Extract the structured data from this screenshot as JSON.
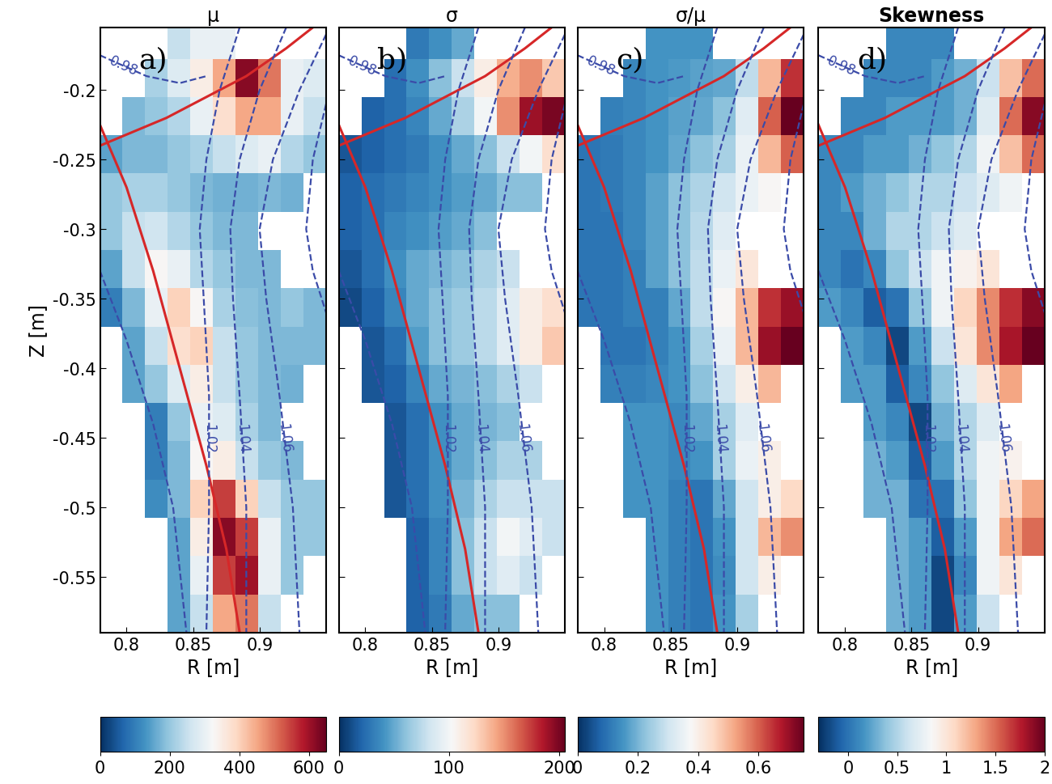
{
  "chart_data": {
    "type": "heatmap",
    "xlabel": "R [m]",
    "ylabel": "Z [m]",
    "xlim": [
      0.78,
      0.95
    ],
    "ylim": [
      -0.59,
      -0.155
    ],
    "xticks": [
      0.8,
      0.85,
      0.9
    ],
    "yticks": [
      -0.2,
      -0.25,
      -0.3,
      -0.35,
      -0.4,
      -0.45,
      -0.5,
      -0.55
    ],
    "R_edges": [
      0.78,
      0.797,
      0.814,
      0.831,
      0.848,
      0.865,
      0.882,
      0.899,
      0.916,
      0.933,
      0.95
    ],
    "Z_edges": [
      -0.59,
      -0.5625,
      -0.535,
      -0.5075,
      -0.48,
      -0.4525,
      -0.425,
      -0.3975,
      -0.37,
      -0.3425,
      -0.315,
      -0.2875,
      -0.26,
      -0.2325,
      -0.205,
      -0.1775,
      -0.15
    ],
    "lines": [
      {
        "color": "#d62728",
        "line_style": "solid",
        "R": [
          0.78,
          0.8,
          0.82,
          0.84,
          0.86,
          0.875,
          0.885
        ],
        "Z": [
          -0.225,
          -0.27,
          -0.33,
          -0.4,
          -0.47,
          -0.53,
          -0.59
        ]
      },
      {
        "color": "#d62728",
        "line_style": "solid",
        "R": [
          0.78,
          0.8,
          0.83,
          0.86,
          0.89,
          0.92,
          0.94
        ],
        "Z": [
          -0.24,
          -0.232,
          -0.22,
          -0.205,
          -0.19,
          -0.17,
          -0.155
        ]
      },
      {
        "color": "#3b4ba8",
        "line_style": "dashed",
        "label": "0.98",
        "R": [
          0.78,
          0.815,
          0.84,
          0.86
        ],
        "Z": [
          -0.175,
          -0.19,
          -0.195,
          -0.19
        ]
      },
      {
        "color": "#3b4ba8",
        "line_style": "dashed",
        "R": [
          0.78,
          0.8,
          0.82,
          0.835,
          0.845
        ],
        "Z": [
          -0.33,
          -0.38,
          -0.44,
          -0.5,
          -0.59
        ]
      },
      {
        "color": "#3b4ba8",
        "line_style": "dashed",
        "label": "1.02",
        "R": [
          0.885,
          0.87,
          0.86,
          0.855,
          0.858,
          0.862,
          0.862,
          0.86
        ],
        "Z": [
          -0.155,
          -0.2,
          -0.25,
          -0.3,
          -0.35,
          -0.42,
          -0.5,
          -0.59
        ]
      },
      {
        "color": "#3b4ba8",
        "line_style": "dashed",
        "label": "1.04",
        "R": [
          0.92,
          0.9,
          0.885,
          0.878,
          0.88,
          0.885,
          0.89,
          0.89
        ],
        "Z": [
          -0.155,
          -0.2,
          -0.25,
          -0.3,
          -0.35,
          -0.42,
          -0.5,
          -0.59
        ]
      },
      {
        "color": "#3b4ba8",
        "line_style": "dashed",
        "label": "1.06",
        "R": [
          0.95,
          0.93,
          0.91,
          0.9,
          0.905,
          0.915,
          0.925,
          0.93
        ],
        "Z": [
          -0.16,
          -0.2,
          -0.25,
          -0.3,
          -0.35,
          -0.42,
          -0.5,
          -0.59
        ]
      },
      {
        "color": "#3b4ba8",
        "line_style": "dashed",
        "R": [
          0.95,
          0.94,
          0.935,
          0.94,
          0.95
        ],
        "Z": [
          -0.21,
          -0.25,
          -0.3,
          -0.33,
          -0.36
        ]
      }
    ],
    "panels": [
      {
        "title": "μ",
        "label": "a)",
        "colorbar": {
          "range": [
            0,
            650
          ],
          "ticks": [
            0,
            200,
            400,
            600
          ]
        },
        "cells": [
          [
            null,
            null,
            null,
            150,
            250,
            450,
            500,
            250,
            null,
            null
          ],
          [
            null,
            null,
            null,
            150,
            300,
            550,
            600,
            300,
            200,
            null
          ],
          [
            null,
            null,
            null,
            150,
            350,
            620,
            550,
            300,
            200,
            200
          ],
          [
            null,
            null,
            120,
            180,
            400,
            550,
            400,
            250,
            200,
            200
          ],
          [
            null,
            null,
            100,
            180,
            330,
            350,
            250,
            200,
            180,
            null
          ],
          [
            null,
            null,
            100,
            200,
            300,
            280,
            220,
            180,
            null,
            null
          ],
          [
            null,
            150,
            200,
            280,
            350,
            250,
            200,
            180,
            170,
            null
          ],
          [
            null,
            150,
            250,
            380,
            400,
            250,
            200,
            180,
            180,
            180
          ],
          [
            100,
            180,
            300,
            400,
            330,
            220,
            190,
            180,
            200,
            180
          ],
          [
            150,
            250,
            330,
            300,
            230,
            200,
            180,
            180,
            null,
            null
          ],
          [
            200,
            250,
            260,
            230,
            200,
            180,
            180,
            null,
            null,
            null
          ],
          [
            200,
            220,
            220,
            200,
            180,
            170,
            170,
            180,
            170,
            null
          ],
          [
            150,
            180,
            180,
            200,
            220,
            250,
            280,
            300,
            230,
            200
          ],
          [
            null,
            180,
            200,
            230,
            300,
            380,
            450,
            450,
            300,
            250
          ],
          [
            null,
            null,
            220,
            280,
            350,
            450,
            620,
            500,
            300,
            280
          ],
          [
            null,
            null,
            null,
            250,
            300,
            300,
            null,
            null,
            null,
            null
          ]
        ]
      },
      {
        "title": "σ",
        "label": "b)",
        "colorbar": {
          "range": [
            0,
            205
          ],
          "ticks": [
            0,
            100,
            200
          ]
        },
        "cells": [
          [
            null,
            null,
            null,
            20,
            30,
            50,
            60,
            60,
            null,
            null
          ],
          [
            null,
            null,
            null,
            20,
            35,
            60,
            80,
            90,
            80,
            null
          ],
          [
            null,
            null,
            null,
            20,
            35,
            60,
            80,
            100,
            90,
            80
          ],
          [
            null,
            null,
            15,
            25,
            40,
            55,
            70,
            80,
            80,
            80
          ],
          [
            null,
            null,
            15,
            25,
            40,
            50,
            60,
            70,
            70,
            null
          ],
          [
            null,
            null,
            15,
            25,
            40,
            50,
            55,
            60,
            null,
            null
          ],
          [
            null,
            15,
            20,
            35,
            50,
            55,
            60,
            70,
            80,
            null
          ],
          [
            null,
            15,
            25,
            45,
            60,
            65,
            75,
            90,
            110,
            130
          ],
          [
            10,
            20,
            35,
            50,
            60,
            65,
            75,
            90,
            110,
            120
          ],
          [
            15,
            25,
            40,
            50,
            55,
            60,
            70,
            80,
            null,
            null
          ],
          [
            20,
            25,
            35,
            40,
            45,
            50,
            60,
            null,
            null,
            null
          ],
          [
            20,
            25,
            30,
            35,
            40,
            45,
            50,
            60,
            60,
            null
          ],
          [
            15,
            20,
            25,
            30,
            40,
            50,
            60,
            80,
            100,
            120
          ],
          [
            null,
            20,
            25,
            35,
            50,
            70,
            100,
            150,
            190,
            200
          ],
          [
            null,
            null,
            25,
            40,
            60,
            80,
            110,
            140,
            150,
            130
          ],
          [
            null,
            null,
            null,
            30,
            40,
            50,
            null,
            null,
            null,
            null
          ]
        ]
      },
      {
        "title": "σ/μ",
        "label": "c)",
        "colorbar": {
          "range": [
            0,
            0.75
          ],
          "ticks": [
            0,
            0.2,
            0.4,
            0.6
          ]
        },
        "cells": [
          [
            null,
            null,
            null,
            0.15,
            0.12,
            0.1,
            0.15,
            0.25,
            null,
            null
          ],
          [
            null,
            null,
            null,
            0.15,
            0.12,
            0.1,
            0.14,
            0.3,
            0.4,
            null
          ],
          [
            null,
            null,
            null,
            0.15,
            0.12,
            0.1,
            0.15,
            0.3,
            0.5,
            0.55
          ],
          [
            null,
            null,
            0.15,
            0.15,
            0.12,
            0.1,
            0.18,
            0.3,
            0.4,
            0.45
          ],
          [
            null,
            null,
            0.15,
            0.15,
            0.13,
            0.15,
            0.25,
            0.35,
            0.4,
            null
          ],
          [
            null,
            null,
            0.15,
            0.15,
            0.13,
            0.18,
            0.25,
            0.33,
            null,
            null
          ],
          [
            null,
            0.12,
            0.12,
            0.13,
            0.15,
            0.22,
            0.3,
            0.4,
            0.5,
            null
          ],
          [
            null,
            0.1,
            0.1,
            0.12,
            0.15,
            0.25,
            0.35,
            0.5,
            0.7,
            0.75
          ],
          [
            0.1,
            0.1,
            0.12,
            0.12,
            0.18,
            0.28,
            0.38,
            0.5,
            0.65,
            0.7
          ],
          [
            0.1,
            0.1,
            0.12,
            0.17,
            0.22,
            0.28,
            0.35,
            0.42,
            null,
            null
          ],
          [
            0.1,
            0.1,
            0.13,
            0.17,
            0.22,
            0.27,
            0.33,
            null,
            null,
            null
          ],
          [
            0.1,
            0.11,
            0.13,
            0.17,
            0.22,
            0.26,
            0.3,
            0.35,
            0.38,
            null
          ],
          [
            0.1,
            0.11,
            0.13,
            0.15,
            0.18,
            0.22,
            0.25,
            0.35,
            0.5,
            0.6
          ],
          [
            null,
            0.12,
            0.13,
            0.15,
            0.17,
            0.18,
            0.22,
            0.33,
            0.6,
            0.75
          ],
          [
            null,
            null,
            0.13,
            0.15,
            0.16,
            0.17,
            0.18,
            0.28,
            0.5,
            0.65
          ],
          [
            null,
            null,
            null,
            0.15,
            0.15,
            0.15,
            null,
            null,
            null,
            null
          ]
        ]
      },
      {
        "title": "Skewness",
        "label": "d)",
        "colorbar": {
          "range": [
            -0.3,
            2
          ],
          "ticks": [
            0,
            0.5,
            1,
            1.5,
            2
          ]
        },
        "cells": [
          [
            null,
            null,
            null,
            0.3,
            0.2,
            -0.2,
            0.2,
            0.6,
            null,
            null
          ],
          [
            null,
            null,
            null,
            0.3,
            0.2,
            -0.2,
            0.1,
            0.8,
            1.0,
            null
          ],
          [
            null,
            null,
            null,
            0.3,
            0.2,
            -0.1,
            0.2,
            0.8,
            1.3,
            1.5
          ],
          [
            null,
            null,
            0.3,
            0.3,
            0.0,
            0.0,
            0.4,
            0.8,
            1.1,
            1.3
          ],
          [
            null,
            null,
            0.3,
            0.2,
            -0.1,
            0.2,
            0.5,
            0.8,
            0.9,
            null
          ],
          [
            null,
            null,
            0.2,
            0.1,
            -0.2,
            0.3,
            0.5,
            0.7,
            null,
            null
          ],
          [
            null,
            0.2,
            0.2,
            -0.1,
            0.1,
            0.4,
            0.7,
            1.0,
            1.3,
            null
          ],
          [
            null,
            0.2,
            0.1,
            -0.2,
            0.2,
            0.6,
            1.0,
            1.4,
            1.8,
            2.0
          ],
          [
            0.2,
            0.1,
            -0.1,
            0.0,
            0.4,
            0.8,
            1.1,
            1.4,
            1.7,
            1.9
          ],
          [
            0.1,
            0.0,
            0.1,
            0.4,
            0.6,
            0.8,
            0.9,
            1.0,
            null,
            null
          ],
          [
            0.1,
            0.1,
            0.3,
            0.5,
            0.5,
            0.6,
            0.7,
            null,
            null,
            null
          ],
          [
            0.1,
            0.2,
            0.3,
            0.4,
            0.5,
            0.5,
            0.6,
            0.7,
            0.8,
            null
          ],
          [
            0.1,
            0.1,
            0.2,
            0.2,
            0.3,
            0.4,
            0.5,
            0.8,
            1.2,
            1.5
          ],
          [
            null,
            0.1,
            0.1,
            0.2,
            0.2,
            0.2,
            0.3,
            0.7,
            1.5,
            1.9
          ],
          [
            null,
            null,
            0.1,
            0.1,
            0.1,
            0.2,
            0.3,
            0.6,
            1.2,
            1.5
          ],
          [
            null,
            null,
            null,
            0.1,
            0.1,
            0.1,
            null,
            null,
            null,
            null
          ]
        ]
      }
    ]
  }
}
